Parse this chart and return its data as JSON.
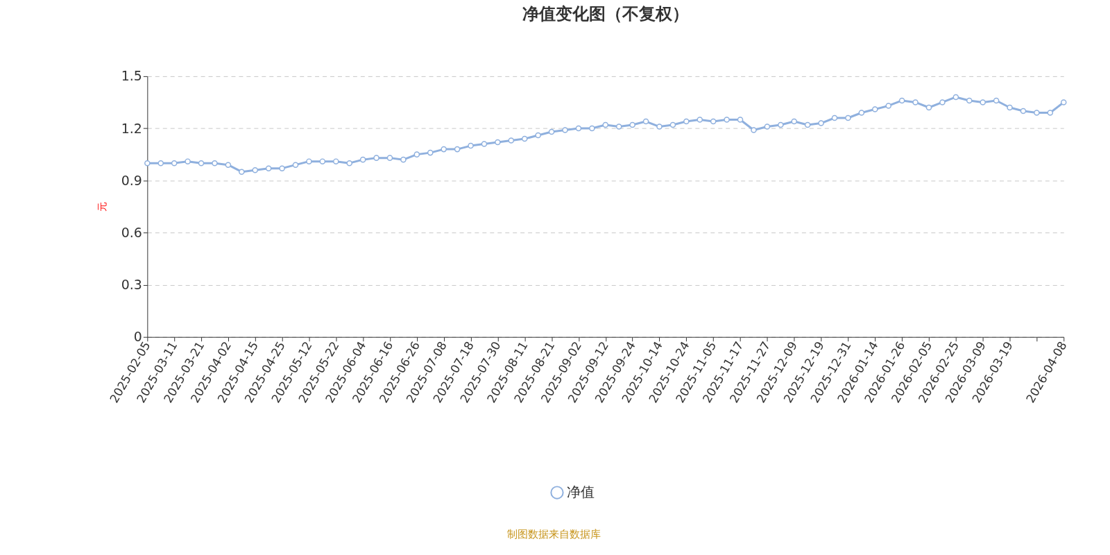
{
  "chart_data": {
    "type": "line",
    "title": "净值变化图（不复权）",
    "ylabel": "元",
    "categories": [
      "2025-02-05",
      null,
      "2025-03-11",
      null,
      "2025-03-21",
      null,
      "2025-04-02",
      null,
      "2025-04-15",
      null,
      "2025-04-25",
      null,
      "2025-05-12",
      null,
      "2025-05-22",
      null,
      "2025-06-04",
      null,
      "2025-06-16",
      null,
      "2025-06-26",
      null,
      "2025-07-08",
      null,
      "2025-07-18",
      null,
      "2025-07-30",
      null,
      "2025-08-11",
      null,
      "2025-08-21",
      null,
      "2025-09-02",
      null,
      "2025-09-12",
      null,
      "2025-09-24",
      null,
      "2025-10-14",
      null,
      "2025-10-24",
      null,
      "2025-11-05",
      null,
      "2025-11-17",
      null,
      "2025-11-27",
      null,
      "2025-12-09",
      null,
      "2025-12-19",
      null,
      "2025-12-31",
      null,
      "2026-01-14",
      null,
      "2026-01-26",
      null,
      "2026-02-05",
      null,
      "2026-02-25",
      null,
      "2026-03-09",
      null,
      "2026-03-19",
      null,
      null,
      null,
      "2026-04-08"
    ],
    "series": [
      {
        "name": "净值",
        "color": "#8fb0de",
        "values": [
          1.0,
          1.0,
          1.0,
          1.01,
          1.0,
          1.0,
          0.99,
          0.95,
          0.96,
          0.97,
          0.97,
          0.99,
          1.01,
          1.01,
          1.01,
          1.0,
          1.02,
          1.03,
          1.03,
          1.02,
          1.05,
          1.06,
          1.08,
          1.08,
          1.1,
          1.11,
          1.12,
          1.13,
          1.14,
          1.16,
          1.18,
          1.19,
          1.2,
          1.2,
          1.22,
          1.21,
          1.22,
          1.24,
          1.21,
          1.22,
          1.24,
          1.25,
          1.24,
          1.25,
          1.25,
          1.19,
          1.21,
          1.22,
          1.24,
          1.22,
          1.23,
          1.26,
          1.26,
          1.29,
          1.31,
          1.33,
          1.36,
          1.35,
          1.32,
          1.35,
          1.38,
          1.36,
          1.35,
          1.36,
          1.32,
          1.3,
          1.29,
          1.29,
          1.35
        ]
      }
    ],
    "ylim": [
      0,
      1.5
    ],
    "yticks": [
      0,
      0.3,
      0.6,
      0.9,
      1.2,
      1.5
    ],
    "grid": "y",
    "marker": "circle",
    "line_style": "solid",
    "legend": "bottom",
    "annotations": [
      "制图数据来自数据库"
    ]
  }
}
